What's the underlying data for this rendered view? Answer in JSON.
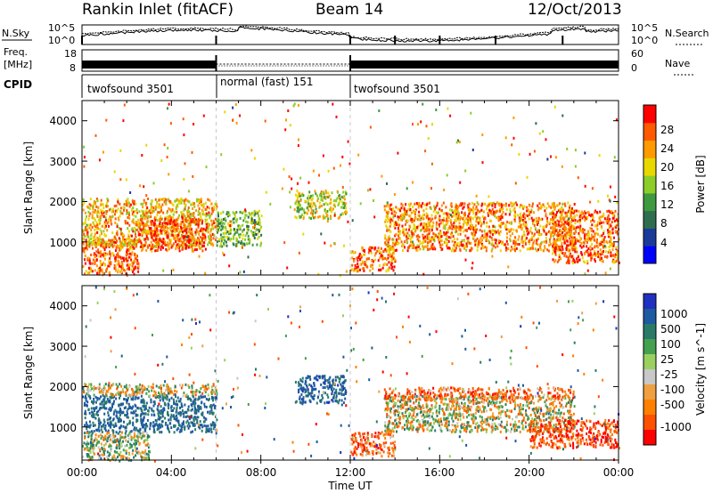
{
  "header": {
    "site": "Rankin Inlet (fitACF)",
    "beam": "Beam 14",
    "date": "12/Oct/2013"
  },
  "side_labels": {
    "nsky": "N.Sky",
    "freq_line1": "Freq.",
    "freq_line2": "[MHz]",
    "cpid": "CPID",
    "nsearch": "N.Search",
    "nave": "Nave"
  },
  "noise_panel": {
    "left_ticks": [
      "10^5",
      "10^0"
    ],
    "right_ticks": [
      "10^5",
      "10^0"
    ]
  },
  "freq_panel": {
    "left_ticks": [
      "18",
      "8"
    ],
    "right_ticks": [
      "60",
      "0"
    ]
  },
  "cpid_panel": {
    "segments": [
      {
        "label": "twofsound 3501",
        "start_hour": 0,
        "end_hour": 6
      },
      {
        "label": "normal (fast) 151",
        "start_hour": 6,
        "end_hour": 12
      },
      {
        "label": "twofsound 3501",
        "start_hour": 12,
        "end_hour": 24
      }
    ]
  },
  "x_axis": {
    "title": "Time UT",
    "ticks": [
      "00:00",
      "04:00",
      "08:00",
      "12:00",
      "16:00",
      "20:00",
      "00:00"
    ]
  },
  "power_panel": {
    "ylabel": "Slant Range [km]",
    "yticks": [
      "4000",
      "3000",
      "2000",
      "1000"
    ],
    "colorbar_title": "Power [dB]",
    "colorbar_ticks": [
      "28",
      "24",
      "20",
      "16",
      "12",
      "8",
      "4"
    ],
    "colors": [
      "#0000ff",
      "#1a3a9a",
      "#2e6e4e",
      "#3f9a3f",
      "#8ccd2a",
      "#e8d800",
      "#ff9a00",
      "#ff5a00",
      "#ff0000"
    ]
  },
  "velocity_panel": {
    "ylabel": "Slant Range [km]",
    "yticks": [
      "4000",
      "3000",
      "2000",
      "1000"
    ],
    "colorbar_title": "Velocity [m s^-1]",
    "colorbar_ticks": [
      "1000",
      "500",
      "100",
      "25",
      "-25",
      "-100",
      "-500",
      "-1000"
    ],
    "colors": [
      "#2030c0",
      "#1e5aa0",
      "#2a7a6a",
      "#45a050",
      "#9ad060",
      "#c8c8c8",
      "#f0a040",
      "#ff8000",
      "#ff5000",
      "#ff0000"
    ]
  },
  "chart_data": [
    {
      "type": "heatmap",
      "title": "Power [dB]",
      "xlabel": "Time UT",
      "ylabel": "Slant Range [km]",
      "xlim": [
        0,
        24
      ],
      "ylim": [
        180,
        4500
      ],
      "colorbar": {
        "label": "Power [dB]",
        "range": [
          0,
          32
        ],
        "ticks": [
          4,
          8,
          12,
          16,
          20,
          24,
          28
        ]
      },
      "scatter_regions": [
        {
          "t_start": 0.0,
          "t_end": 2.5,
          "r_min": 200,
          "r_max": 1100,
          "typical_db": 26
        },
        {
          "t_start": 0.0,
          "t_end": 6.0,
          "r_min": 900,
          "r_max": 2100,
          "typical_db": 22
        },
        {
          "t_start": 2.5,
          "t_end": 5.5,
          "r_min": 800,
          "r_max": 1600,
          "typical_db": 28
        },
        {
          "t_start": 6.0,
          "t_end": 8.0,
          "r_min": 900,
          "r_max": 1800,
          "typical_db": 14
        },
        {
          "t_start": 9.5,
          "t_end": 11.8,
          "r_min": 1600,
          "r_max": 2300,
          "typical_db": 18
        },
        {
          "t_start": 12.0,
          "t_end": 14.0,
          "r_min": 300,
          "r_max": 900,
          "typical_db": 26
        },
        {
          "t_start": 13.5,
          "t_end": 22.0,
          "r_min": 800,
          "r_max": 2000,
          "typical_db": 24
        },
        {
          "t_start": 21.0,
          "t_end": 24.0,
          "r_min": 500,
          "r_max": 1800,
          "typical_db": 26
        }
      ]
    },
    {
      "type": "heatmap",
      "title": "Velocity [m s^-1]",
      "xlabel": "Time UT",
      "ylabel": "Slant Range [km]",
      "xlim": [
        0,
        24
      ],
      "ylim": [
        180,
        4500
      ],
      "colorbar": {
        "label": "Velocity [m s^-1]",
        "ticks": [
          1000,
          500,
          100,
          25,
          -25,
          -100,
          -500,
          -1000
        ]
      },
      "scatter_regions": [
        {
          "t_start": 0.0,
          "t_end": 6.0,
          "r_min": 900,
          "r_max": 1800,
          "typical_velocity": 600
        },
        {
          "t_start": 0.0,
          "t_end": 6.0,
          "r_min": 1800,
          "r_max": 2100,
          "typical_velocity": 0
        },
        {
          "t_start": 0.0,
          "t_end": 3.0,
          "r_min": 200,
          "r_max": 900,
          "typical_velocity": 150
        },
        {
          "t_start": 9.5,
          "t_end": 11.8,
          "r_min": 1600,
          "r_max": 2300,
          "typical_velocity": 700
        },
        {
          "t_start": 12.0,
          "t_end": 14.0,
          "r_min": 300,
          "r_max": 900,
          "typical_velocity": -300
        },
        {
          "t_start": 13.5,
          "t_end": 22.0,
          "r_min": 900,
          "r_max": 1800,
          "typical_velocity": 0
        },
        {
          "t_start": 13.5,
          "t_end": 22.0,
          "r_min": 1700,
          "r_max": 2000,
          "typical_velocity": -300
        },
        {
          "t_start": 20.0,
          "t_end": 24.0,
          "r_min": 500,
          "r_max": 1200,
          "typical_velocity": -400
        }
      ]
    }
  ]
}
